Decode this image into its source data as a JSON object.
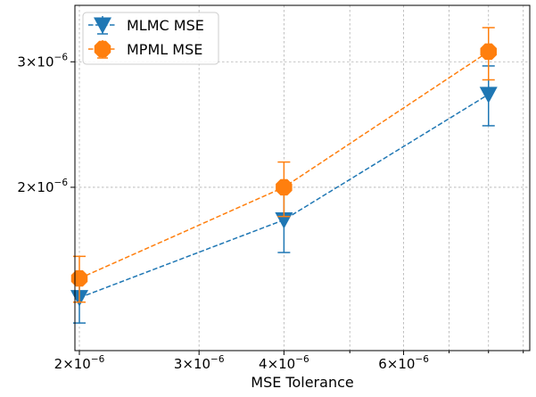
{
  "chart_data": {
    "type": "line",
    "title": "",
    "xlabel": "MSE Tolerance",
    "ylabel": "",
    "xscale": "log",
    "yscale": "log",
    "xlim": [
      1.97e-06,
      9.2e-06
    ],
    "ylim": [
      1.18e-06,
      3.6e-06
    ],
    "x": [
      2e-06,
      4e-06,
      8e-06
    ],
    "grid": true,
    "legend_position": "top-left",
    "x_ticks": [
      {
        "value": 2e-06,
        "mantissa": "2",
        "exponent": "−6"
      },
      {
        "value": 3e-06,
        "mantissa": "3",
        "exponent": "−6"
      },
      {
        "value": 4e-06,
        "mantissa": "4",
        "exponent": "−6"
      },
      {
        "value": 6e-06,
        "mantissa": "6",
        "exponent": "−6"
      }
    ],
    "x_minor_ticks": [
      5e-06,
      7e-06,
      8e-06,
      9e-06
    ],
    "y_ticks": [
      {
        "value": 2e-06,
        "mantissa": "2",
        "exponent": "−6"
      },
      {
        "value": 3e-06,
        "mantissa": "3",
        "exponent": "−6"
      }
    ],
    "series": [
      {
        "name": "MLMC MSE",
        "color": "#1f77b4",
        "marker": "triangle-down",
        "linestyle": "dashed",
        "values": [
          1.4e-06,
          1.8e-06,
          2.7e-06
        ],
        "err_low": [
          1.29e-06,
          1.62e-06,
          2.44e-06
        ],
        "err_high": [
          1.51e-06,
          1.98e-06,
          2.96e-06
        ]
      },
      {
        "name": "MPML MSE",
        "color": "#ff7f0e",
        "marker": "octagon",
        "linestyle": "dashed",
        "values": [
          1.49e-06,
          2e-06,
          3.1e-06
        ],
        "err_low": [
          1.38e-06,
          1.82e-06,
          2.83e-06
        ],
        "err_high": [
          1.6e-06,
          2.17e-06,
          3.35e-06
        ]
      }
    ]
  }
}
